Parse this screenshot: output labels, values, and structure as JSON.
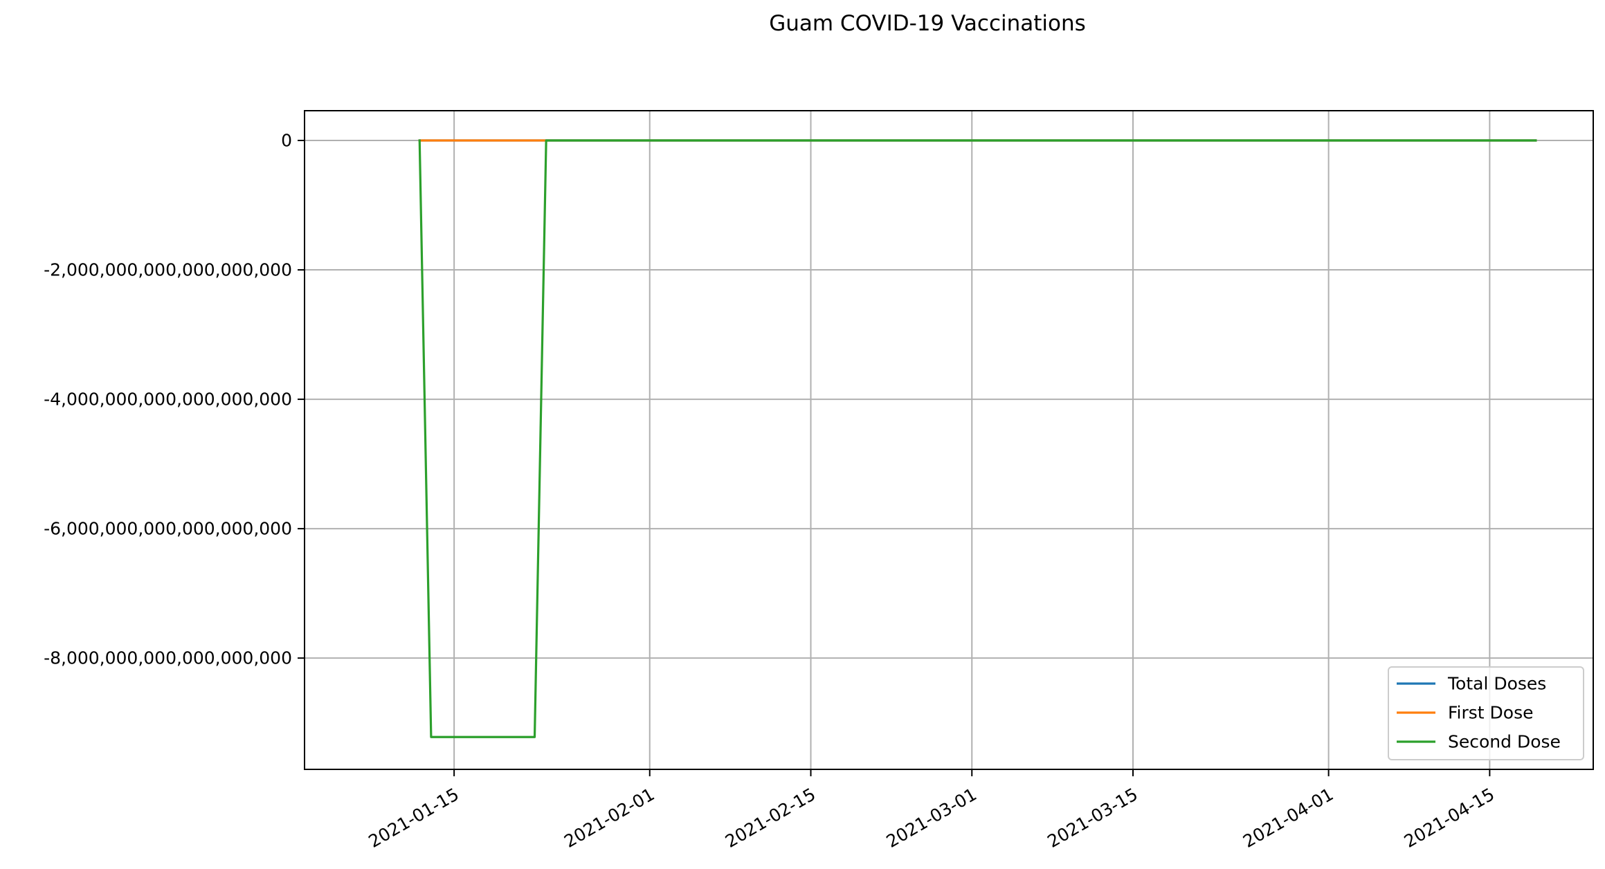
{
  "chart_data": {
    "type": "line",
    "title": "Guam COVID-19 Vaccinations",
    "xlabel": "",
    "ylabel": "",
    "x_axis_type": "date",
    "xlim": [
      "2021-01-02",
      "2021-04-24"
    ],
    "ylim": [
      -9.72e+18,
      4.6e+17
    ],
    "grid": true,
    "legend_position": "lower-right",
    "x_ticks": [
      "2021-01-15",
      "2021-02-01",
      "2021-02-15",
      "2021-03-01",
      "2021-03-15",
      "2021-04-01",
      "2021-04-15"
    ],
    "y_ticks": [
      {
        "value": 0,
        "label": "0"
      },
      {
        "value": -2e+18,
        "label": "-2,000,000,000,000,000,000"
      },
      {
        "value": -4e+18,
        "label": "-4,000,000,000,000,000,000"
      },
      {
        "value": -6e+18,
        "label": "-6,000,000,000,000,000,000"
      },
      {
        "value": -8e+18,
        "label": "-8,000,000,000,000,000,000"
      }
    ],
    "series": [
      {
        "name": "Total Doses",
        "color": "#1f77b4",
        "points": [
          {
            "x": "2021-01-12",
            "y": 0
          },
          {
            "x": "2021-04-19",
            "y": 0
          }
        ]
      },
      {
        "name": "First Dose",
        "color": "#ff7f0e",
        "points": [
          {
            "x": "2021-01-12",
            "y": 0
          },
          {
            "x": "2021-01-23",
            "y": 0
          },
          {
            "x": "2021-04-19",
            "y": 0
          }
        ]
      },
      {
        "name": "Second Dose",
        "color": "#2ca02c",
        "points": [
          {
            "x": "2021-01-12",
            "y": 0
          },
          {
            "x": "2021-01-13",
            "y": -9.22e+18
          },
          {
            "x": "2021-01-22",
            "y": -9.22e+18
          },
          {
            "x": "2021-01-23",
            "y": 0
          },
          {
            "x": "2021-04-19",
            "y": 0
          }
        ]
      }
    ]
  }
}
